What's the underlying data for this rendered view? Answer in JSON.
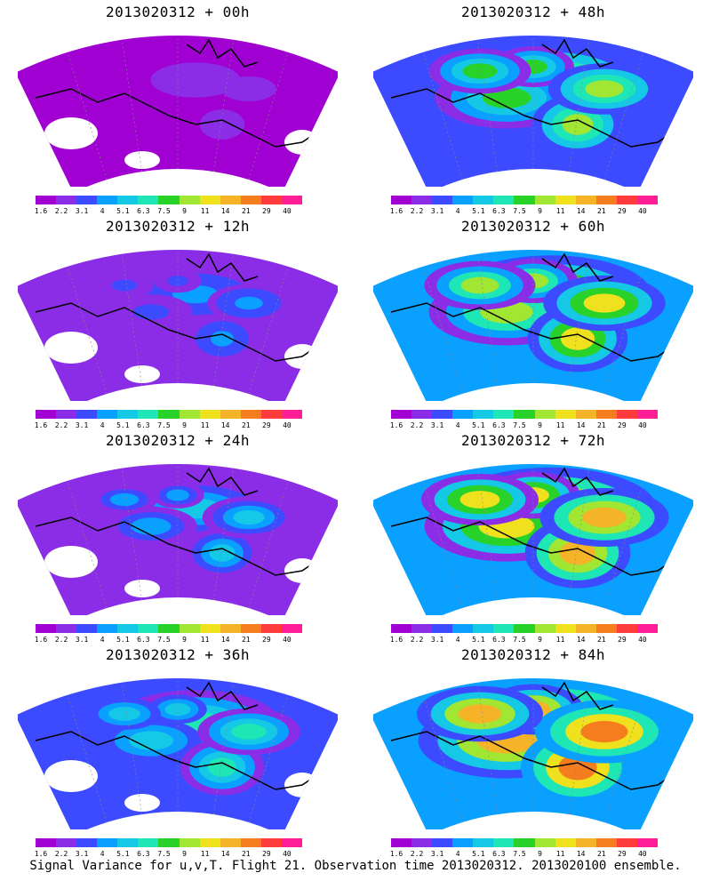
{
  "panels": [
    {
      "title": "2013020312 + 00h",
      "intensity": 0.12
    },
    {
      "title": "2013020312 + 48h",
      "intensity": 0.55
    },
    {
      "title": "2013020312 + 12h",
      "intensity": 0.25
    },
    {
      "title": "2013020312 + 60h",
      "intensity": 0.65
    },
    {
      "title": "2013020312 + 24h",
      "intensity": 0.35
    },
    {
      "title": "2013020312 + 72h",
      "intensity": 0.72
    },
    {
      "title": "2013020312 + 36h",
      "intensity": 0.45
    },
    {
      "title": "2013020312 + 84h",
      "intensity": 0.82
    }
  ],
  "colorbar": {
    "ticks": [
      "1.6",
      "2.2",
      "3.1",
      "4",
      "5.1",
      "6.3",
      "7.5",
      "9",
      "11",
      "14",
      "21",
      "29",
      "40"
    ],
    "colors": [
      "#a000d2",
      "#8b2de6",
      "#3c4bff",
      "#0aa0ff",
      "#14c8e6",
      "#1ee6b4",
      "#28d228",
      "#a0e632",
      "#f0e11e",
      "#f5b428",
      "#f57d1e",
      "#ff3c3c",
      "#ff1e96"
    ]
  },
  "footer": "Signal Variance for u,v,T. Flight 21. Observation time 2013020312. 2013020100 ensemble."
}
